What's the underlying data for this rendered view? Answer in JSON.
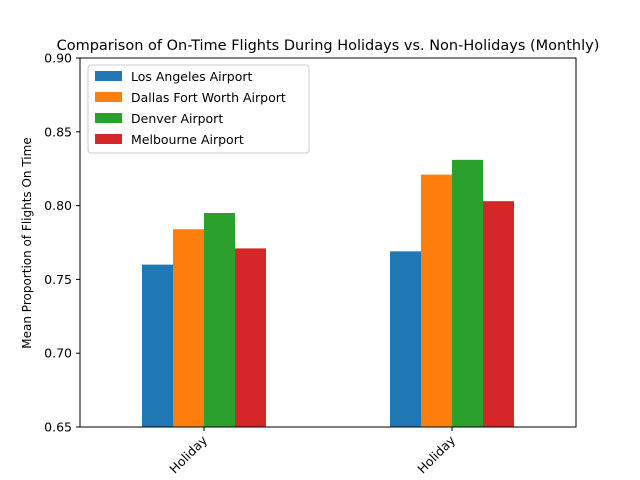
{
  "chart_data": {
    "type": "bar",
    "title": "Comparison of On-Time Flights During Holidays vs. Non-Holidays (Monthly)",
    "xlabel": "",
    "ylabel": "Mean Proportion of Flights On Time",
    "ylim": [
      0.65,
      0.9
    ],
    "yticks": [
      "0.65",
      "0.70",
      "0.75",
      "0.80",
      "0.85",
      "0.90"
    ],
    "ytick_values": [
      0.65,
      0.7,
      0.75,
      0.8,
      0.85,
      0.9
    ],
    "categories": [
      "Holiday",
      "Holiday"
    ],
    "series": [
      {
        "name": "Los Angeles Airport",
        "color": "#1f77b4",
        "values": [
          0.76,
          0.769
        ]
      },
      {
        "name": "Dallas Fort Worth Airport",
        "color": "#ff7f0e",
        "values": [
          0.784,
          0.821
        ]
      },
      {
        "name": "Denver Airport",
        "color": "#2ca02c",
        "values": [
          0.795,
          0.831
        ]
      },
      {
        "name": "Melbourne Airport",
        "color": "#d62728",
        "values": [
          0.771,
          0.803
        ]
      }
    ],
    "legend_position": "top-left",
    "grid": false
  }
}
